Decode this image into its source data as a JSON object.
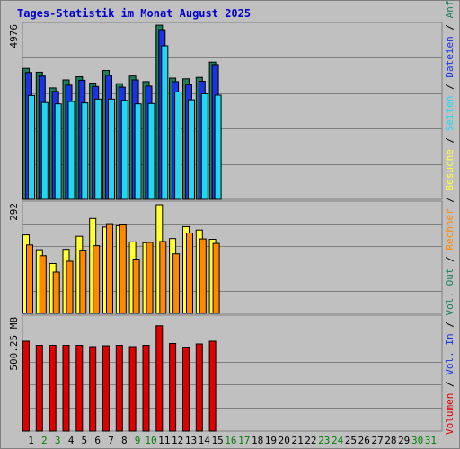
{
  "title": "Tages-Statistik im Monat August 2025",
  "colors": {
    "anfragen": "#1e7f5a",
    "dateien": "#1a33e6",
    "seiten": "#22d8f0",
    "besuche": "#ffff33",
    "rechner": "#ff8800",
    "volumen": "#e00000",
    "grid": "#7f7f7f",
    "label_black": "#000000",
    "label_weekend": "#008000"
  },
  "chart_data": [
    {
      "type": "bar",
      "panel": "top",
      "y_max_label": "4976",
      "ylim": [
        0,
        4976
      ],
      "categories": [
        "1",
        "2",
        "3",
        "4",
        "5",
        "6",
        "7",
        "8",
        "9",
        "10",
        "11",
        "12",
        "13",
        "14",
        "15"
      ],
      "series": [
        {
          "name": "Anfragen",
          "color_key": "anfragen",
          "values": [
            3760,
            3650,
            3200,
            3430,
            3520,
            3340,
            3700,
            3320,
            3540,
            3380,
            5000,
            3480,
            3460,
            3500,
            3940
          ]
        },
        {
          "name": "Dateien",
          "color_key": "dateien",
          "values": [
            3640,
            3540,
            3100,
            3280,
            3420,
            3240,
            3560,
            3220,
            3430,
            3250,
            4870,
            3380,
            3290,
            3390,
            3870
          ]
        },
        {
          "name": "Seiten",
          "color_key": "seiten",
          "values": [
            2980,
            2780,
            2740,
            2810,
            2770,
            2880,
            2880,
            2840,
            2740,
            2750,
            4410,
            3080,
            2860,
            3030,
            2990
          ]
        }
      ]
    },
    {
      "type": "bar",
      "panel": "middle",
      "y_max_label": "292",
      "ylim": [
        0,
        292
      ],
      "categories": [
        "1",
        "2",
        "3",
        "4",
        "5",
        "6",
        "7",
        "8",
        "9",
        "10",
        "11",
        "12",
        "13",
        "14",
        "15"
      ],
      "series": [
        {
          "name": "Besuche",
          "color_key": "besuche",
          "values": [
            211,
            171,
            134,
            172,
            207,
            255,
            232,
            235,
            192,
            190,
            292,
            201,
            233,
            224,
            199
          ]
        },
        {
          "name": "Rechner",
          "color_key": "rechner",
          "values": [
            184,
            155,
            111,
            140,
            170,
            182,
            241,
            240,
            146,
            191,
            193,
            160,
            216,
            200,
            188
          ]
        }
      ]
    },
    {
      "type": "bar",
      "panel": "bottom",
      "y_max_label": "500.25 MB",
      "ylim": [
        0,
        500.25
      ],
      "categories": [
        "1",
        "2",
        "3",
        "4",
        "5",
        "6",
        "7",
        "8",
        "9",
        "10",
        "11",
        "12",
        "13",
        "14",
        "15"
      ],
      "series": [
        {
          "name": "Volumen",
          "color_key": "volumen",
          "values": [
            400,
            382,
            382,
            382,
            382,
            376,
            380,
            382,
            376,
            382,
            469,
            390,
            374,
            388,
            400
          ]
        }
      ]
    }
  ],
  "x_axis": {
    "days": [
      "1",
      "2",
      "3",
      "4",
      "5",
      "6",
      "7",
      "8",
      "9",
      "10",
      "11",
      "12",
      "13",
      "14",
      "15",
      "16",
      "17",
      "18",
      "19",
      "20",
      "21",
      "22",
      "23",
      "24",
      "25",
      "26",
      "27",
      "28",
      "29",
      "30",
      "31"
    ],
    "weekend_days": [
      "2",
      "3",
      "9",
      "10",
      "16",
      "17",
      "23",
      "24",
      "30",
      "31"
    ]
  },
  "right_legend": [
    {
      "text": "Volumen",
      "color_key": "volumen"
    },
    {
      "text": " / ",
      "color_key": "label_black"
    },
    {
      "text": "Vol. In",
      "color_key": "dateien"
    },
    {
      "text": " / ",
      "color_key": "label_black"
    },
    {
      "text": "Vol. Out",
      "color_key": "anfragen"
    },
    {
      "text": " / ",
      "color_key": "label_black"
    },
    {
      "text": "Rechner",
      "color_key": "rechner"
    },
    {
      "text": " / ",
      "color_key": "label_black"
    },
    {
      "text": "Besuche",
      "color_key": "besuche"
    },
    {
      "text": " / ",
      "color_key": "label_black"
    },
    {
      "text": "Seiten",
      "color_key": "seiten"
    },
    {
      "text": " / ",
      "color_key": "label_black"
    },
    {
      "text": "Dateien",
      "color_key": "dateien"
    },
    {
      "text": " / ",
      "color_key": "label_black"
    },
    {
      "text": "Anfragen",
      "color_key": "anfragen"
    }
  ]
}
